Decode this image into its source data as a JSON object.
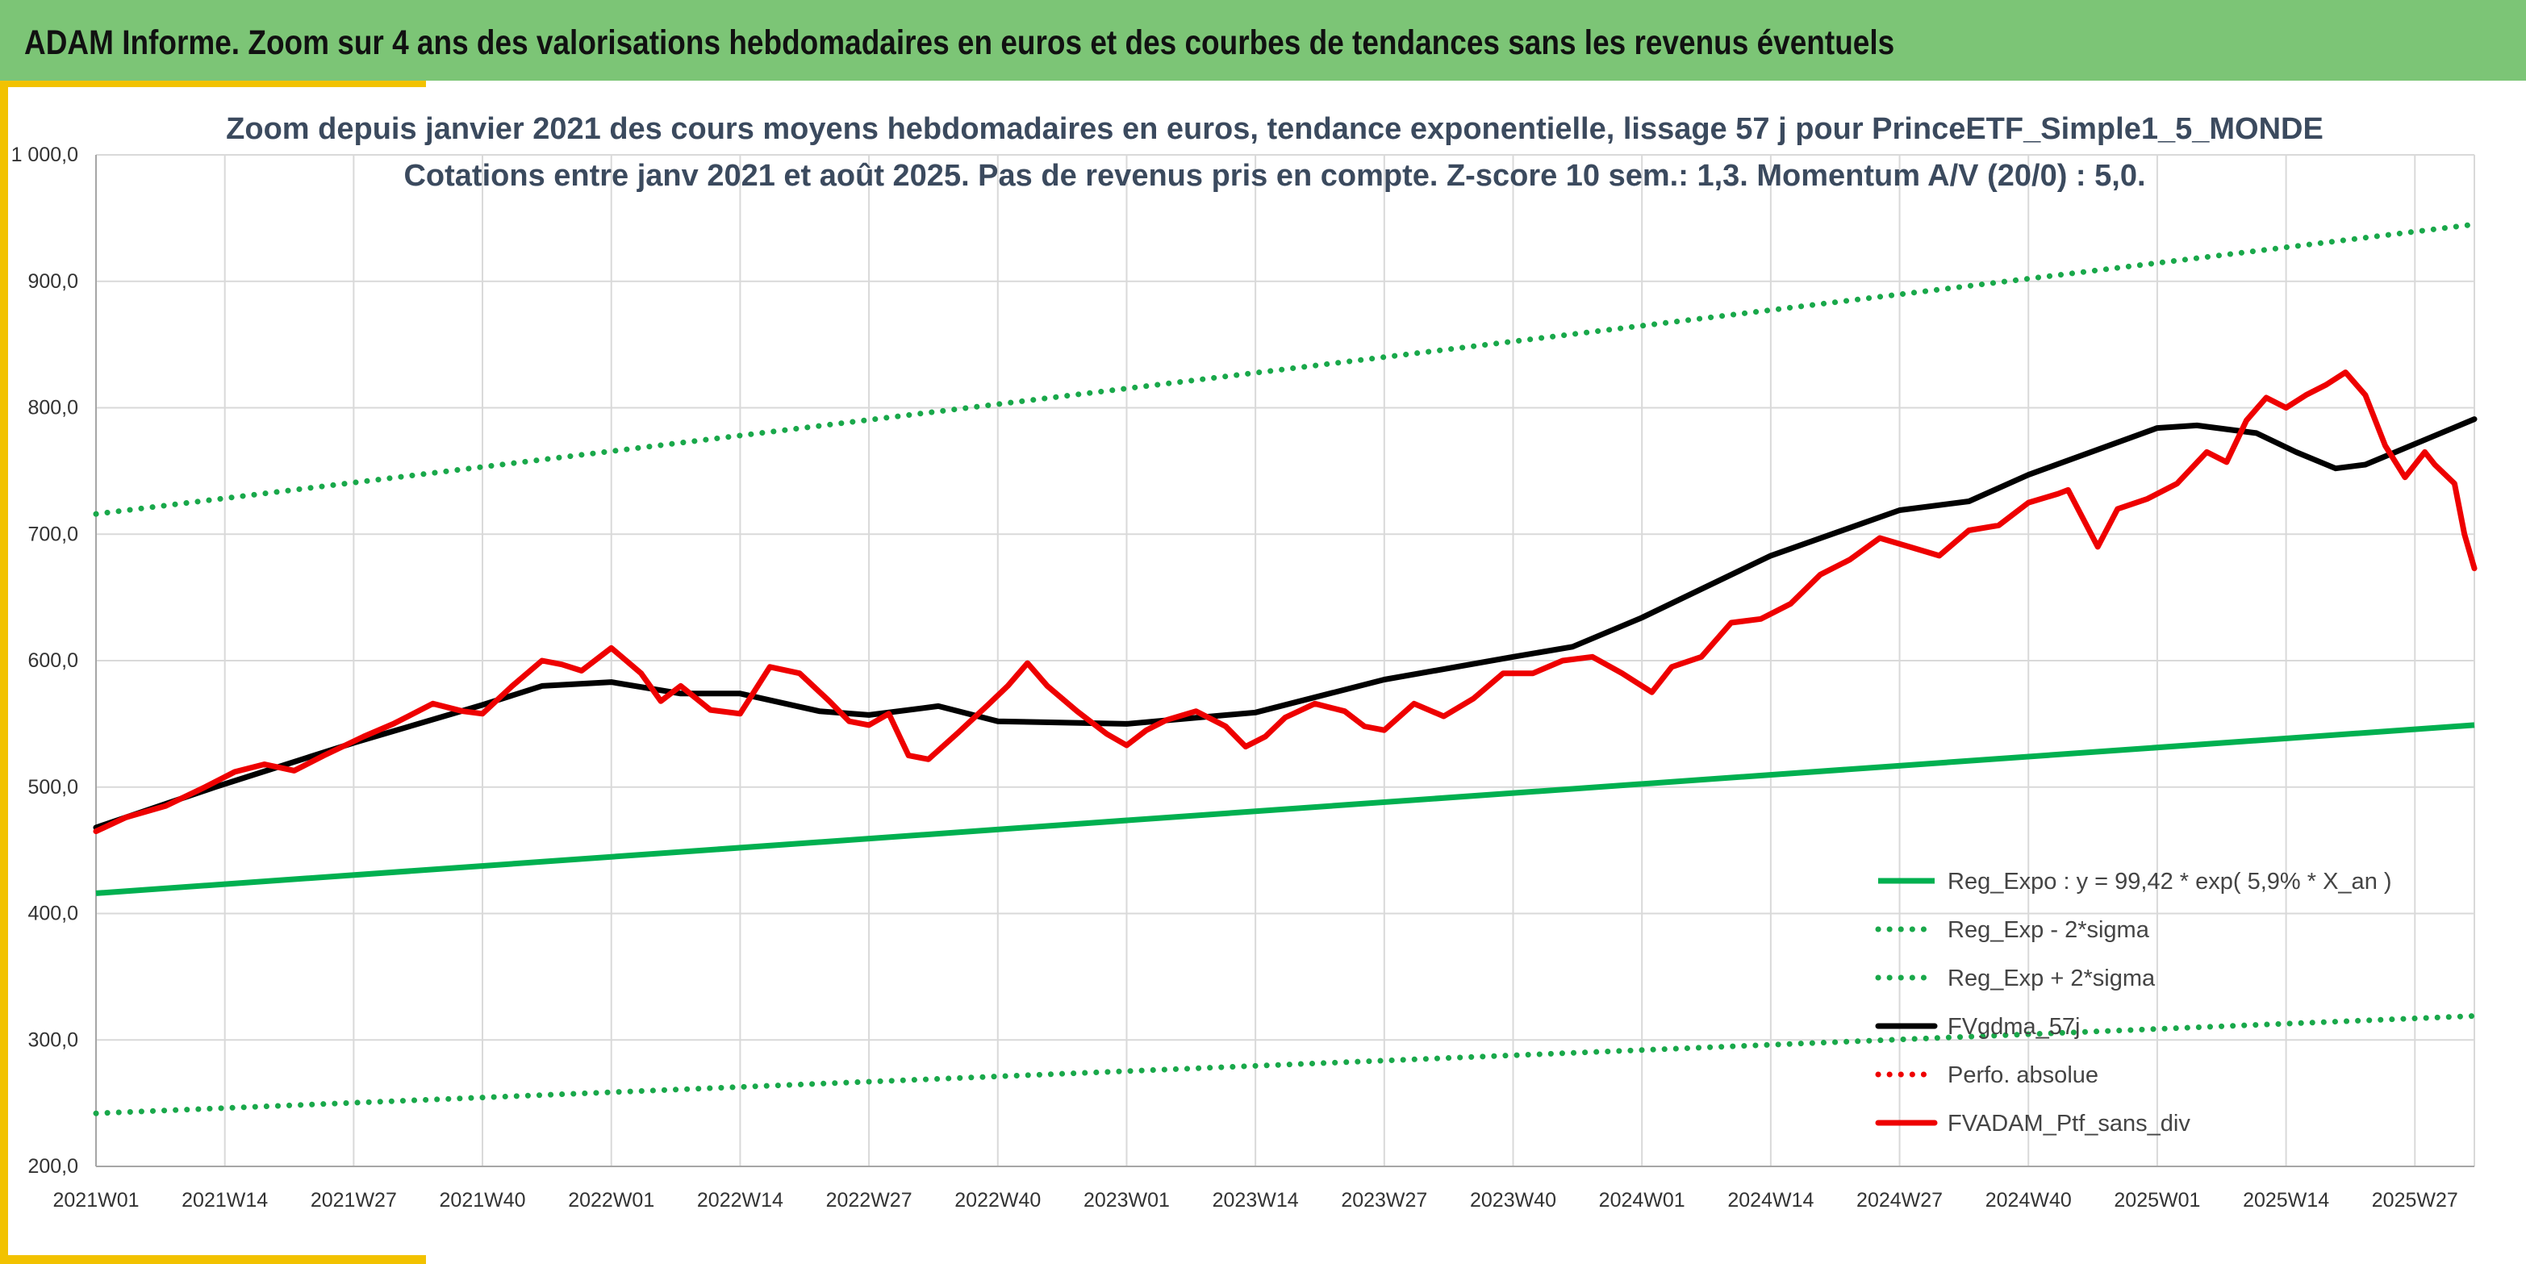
{
  "banner": {
    "title": "ADAM Informe. Zoom sur 4 ans des valorisations hebdomadaires en euros et des courbes de tendances sans les revenus éventuels"
  },
  "colors": {
    "banner_bg": "#7cc576",
    "accent": "#f2c200",
    "grid": "#d9d9d9",
    "green_solid": "#00b050",
    "green_dotted": "#19a84a",
    "black": "#000000",
    "red": "#ee0000"
  },
  "chart_data": {
    "type": "line",
    "title": "Zoom depuis janvier 2021 des cours moyens hebdomadaires en euros, tendance exponentielle, lissage 57 j pour PrinceETF_Simple1_5_MONDE",
    "subtitle": "Cotations entre janv 2021 et août 2025. Pas de revenus pris en compte. Z-score 10 sem.: 1,3. Momentum A/V (20/0) : 5,0.",
    "x_start_week": 1,
    "x_end_week": 241,
    "ylim": [
      200,
      1000
    ],
    "yticks": [
      200,
      300,
      400,
      500,
      600,
      700,
      800,
      900,
      1000
    ],
    "ytick_labels": [
      "200,0",
      "300,0",
      "400,0",
      "500,0",
      "600,0",
      "700,0",
      "800,0",
      "900,0",
      "1 000,0"
    ],
    "xtick_labels": [
      "2021W01",
      "2021W14",
      "2021W27",
      "2021W40",
      "2022W01",
      "2022W14",
      "2022W27",
      "2022W40",
      "2023W01",
      "2023W14",
      "2023W27",
      "2023W40",
      "2024W01",
      "2024W14",
      "2024W27",
      "2024W40",
      "2025W01",
      "2025W14",
      "2025W27"
    ],
    "xtick_weeks": [
      1,
      14,
      27,
      40,
      53,
      66,
      79,
      92,
      105,
      118,
      131,
      144,
      157,
      170,
      183,
      196,
      209,
      222,
      235
    ],
    "grid": true,
    "legend_position": "bottom-right",
    "series": [
      {
        "name": "Reg_Expo : y = 99,42 * exp( 5,9% *  X_an )",
        "style": "solid",
        "color": "#00b050",
        "points": [
          [
            1,
            416
          ],
          [
            241,
            549
          ]
        ]
      },
      {
        "name": "Reg_Exp - 2*sigma",
        "style": "dotted",
        "color": "#19a84a",
        "points": [
          [
            1,
            242
          ],
          [
            241,
            319
          ]
        ]
      },
      {
        "name": "Reg_Exp + 2*sigma",
        "style": "dotted",
        "color": "#19a84a",
        "points": [
          [
            1,
            716
          ],
          [
            241,
            945
          ]
        ]
      },
      {
        "name": "FVgdma_57j",
        "style": "solid",
        "color": "#000000",
        "points": [
          [
            1,
            468
          ],
          [
            13,
            500
          ],
          [
            27,
            535
          ],
          [
            40,
            565
          ],
          [
            46,
            580
          ],
          [
            53,
            583
          ],
          [
            60,
            574
          ],
          [
            66,
            574
          ],
          [
            74,
            560
          ],
          [
            79,
            557
          ],
          [
            86,
            564
          ],
          [
            92,
            552
          ],
          [
            105,
            550
          ],
          [
            118,
            559
          ],
          [
            131,
            585
          ],
          [
            144,
            603
          ],
          [
            150,
            611
          ],
          [
            157,
            634
          ],
          [
            170,
            683
          ],
          [
            183,
            719
          ],
          [
            190,
            726
          ],
          [
            196,
            747
          ],
          [
            209,
            784
          ],
          [
            213,
            786
          ],
          [
            219,
            780
          ],
          [
            223,
            765
          ],
          [
            227,
            752
          ],
          [
            230,
            755
          ],
          [
            241,
            791
          ]
        ]
      },
      {
        "name": "Perfo. absolue",
        "style": "dotted",
        "color": "#ee0000",
        "points": []
      },
      {
        "name": "FVADAM_Ptf_sans_div",
        "style": "solid",
        "color": "#ee0000",
        "points": [
          [
            1,
            465
          ],
          [
            4,
            476
          ],
          [
            8,
            485
          ],
          [
            12,
            500
          ],
          [
            15,
            512
          ],
          [
            18,
            518
          ],
          [
            21,
            513
          ],
          [
            24,
            525
          ],
          [
            28,
            540
          ],
          [
            31,
            550
          ],
          [
            35,
            566
          ],
          [
            38,
            560
          ],
          [
            40,
            558
          ],
          [
            43,
            580
          ],
          [
            46,
            600
          ],
          [
            48,
            597
          ],
          [
            50,
            592
          ],
          [
            53,
            610
          ],
          [
            56,
            590
          ],
          [
            58,
            568
          ],
          [
            60,
            580
          ],
          [
            63,
            561
          ],
          [
            66,
            558
          ],
          [
            69,
            595
          ],
          [
            72,
            590
          ],
          [
            75,
            568
          ],
          [
            77,
            552
          ],
          [
            79,
            549
          ],
          [
            81,
            558
          ],
          [
            83,
            525
          ],
          [
            85,
            522
          ],
          [
            88,
            543
          ],
          [
            91,
            565
          ],
          [
            93,
            580
          ],
          [
            95,
            598
          ],
          [
            97,
            580
          ],
          [
            100,
            560
          ],
          [
            103,
            542
          ],
          [
            105,
            533
          ],
          [
            107,
            545
          ],
          [
            109,
            553
          ],
          [
            112,
            560
          ],
          [
            115,
            548
          ],
          [
            117,
            532
          ],
          [
            119,
            540
          ],
          [
            121,
            555
          ],
          [
            124,
            566
          ],
          [
            127,
            560
          ],
          [
            129,
            548
          ],
          [
            131,
            545
          ],
          [
            134,
            566
          ],
          [
            137,
            556
          ],
          [
            140,
            570
          ],
          [
            143,
            590
          ],
          [
            146,
            590
          ],
          [
            149,
            600
          ],
          [
            152,
            603
          ],
          [
            155,
            590
          ],
          [
            158,
            575
          ],
          [
            160,
            595
          ],
          [
            163,
            603
          ],
          [
            166,
            630
          ],
          [
            169,
            633
          ],
          [
            172,
            645
          ],
          [
            175,
            668
          ],
          [
            178,
            680
          ],
          [
            181,
            697
          ],
          [
            184,
            690
          ],
          [
            187,
            683
          ],
          [
            190,
            703
          ],
          [
            193,
            707
          ],
          [
            196,
            725
          ],
          [
            199,
            732
          ],
          [
            200,
            735
          ],
          [
            203,
            690
          ],
          [
            205,
            720
          ],
          [
            208,
            728
          ],
          [
            211,
            740
          ],
          [
            214,
            765
          ],
          [
            216,
            757
          ],
          [
            218,
            790
          ],
          [
            220,
            808
          ],
          [
            222,
            800
          ],
          [
            224,
            810
          ],
          [
            226,
            818
          ],
          [
            228,
            828
          ],
          [
            230,
            810
          ],
          [
            232,
            770
          ],
          [
            234,
            745
          ],
          [
            236,
            765
          ],
          [
            237,
            755
          ],
          [
            239,
            740
          ],
          [
            240,
            700
          ],
          [
            241,
            673
          ]
        ]
      }
    ]
  }
}
